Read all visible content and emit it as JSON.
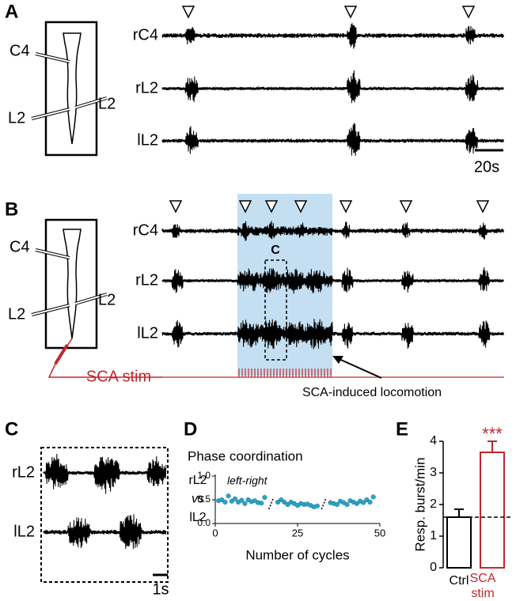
{
  "panel_labels": [
    "A",
    "B",
    "C",
    "D",
    "E"
  ],
  "panel_a": {
    "nerves": [
      "rC4",
      "rL2",
      "lL2"
    ],
    "diagram_labels": [
      "C4",
      "L2",
      "L2"
    ],
    "scale_bar": "20s"
  },
  "panel_b": {
    "nerves": [
      "rC4",
      "rL2",
      "lL2"
    ],
    "diagram_labels": [
      "C4",
      "L2",
      "L2"
    ],
    "box_label": "C",
    "stim_label": "SCA stim",
    "annotation": "SCA-induced locomotion"
  },
  "panel_c": {
    "nerves": [
      "rL2",
      "lL2"
    ],
    "scale_bar": "1s"
  },
  "chart_data": [
    {
      "type": "scatter",
      "title": "Phase coordination",
      "ylabel": [
        "rL2",
        "vs",
        "lL2"
      ],
      "annotation": "left-right",
      "xlabel": "Number of cycles",
      "xlim": [
        0,
        50
      ],
      "xticks": [
        0,
        25,
        50
      ],
      "ylim": [
        0,
        1
      ],
      "yticks": [
        {
          "value": 0,
          "label": "0.0"
        },
        {
          "value": 0.5,
          "label": "0.5"
        },
        {
          "value": 1,
          "label": "1.0"
        }
      ],
      "color": "#2aa3c8",
      "x": [
        1,
        2,
        3,
        4,
        5,
        6,
        7,
        8,
        9,
        10,
        11,
        12,
        13,
        14,
        15,
        19,
        20,
        21,
        22,
        23,
        24,
        25,
        26,
        27,
        28,
        29,
        30,
        31,
        35,
        36,
        37,
        38,
        39,
        40,
        41,
        42,
        43,
        44,
        45,
        46,
        47,
        48
      ],
      "values": [
        0.48,
        0.5,
        0.45,
        0.58,
        0.47,
        0.52,
        0.45,
        0.49,
        0.42,
        0.5,
        0.46,
        0.48,
        0.44,
        0.43,
        0.55,
        0.45,
        0.5,
        0.45,
        0.4,
        0.45,
        0.42,
        0.38,
        0.42,
        0.4,
        0.41,
        0.38,
        0.35,
        0.37,
        0.44,
        0.42,
        0.4,
        0.47,
        0.44,
        0.4,
        0.48,
        0.45,
        0.42,
        0.47,
        0.44,
        0.5,
        0.45,
        0.56
      ]
    },
    {
      "type": "bar",
      "ylabel": "Resp. burst/min",
      "categories": [
        "Ctrl",
        "SCA stim"
      ],
      "values": [
        1.6,
        3.65
      ],
      "errors": [
        0.25,
        0.35
      ],
      "colors": [
        "#000000",
        "#c0272d"
      ],
      "significance": "***",
      "ylim": [
        0,
        4
      ],
      "yticks": [
        0,
        1,
        2,
        3,
        4
      ]
    }
  ]
}
